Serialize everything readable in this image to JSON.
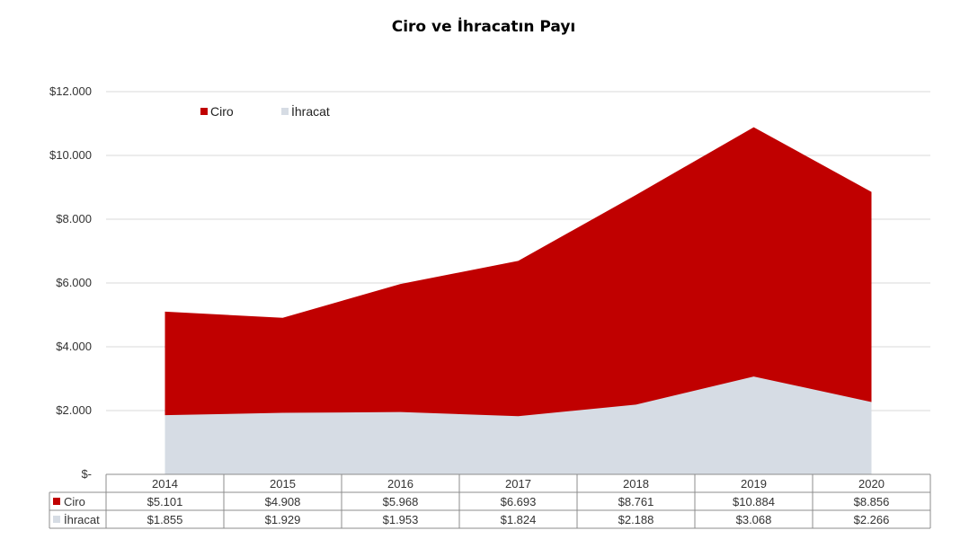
{
  "chart_data": {
    "type": "area",
    "title": "Ciro ve İhracatın Payı",
    "categories": [
      "2014",
      "2015",
      "2016",
      "2017",
      "2018",
      "2019",
      "2020"
    ],
    "series": [
      {
        "name": "Ciro",
        "color": "#c00000",
        "values": [
          5101,
          4908,
          5968,
          6693,
          8761,
          10884,
          8856
        ],
        "labels": [
          "$5.101",
          "$4.908",
          "$5.968",
          "$6.693",
          "$8.761",
          "$10.884",
          "$8.856"
        ]
      },
      {
        "name": "İhracat",
        "color": "#d6dce4",
        "values": [
          1855,
          1929,
          1953,
          1824,
          2188,
          3068,
          2266
        ],
        "labels": [
          "$1.855",
          "$1.929",
          "$1.953",
          "$1.824",
          "$2.188",
          "$3.068",
          "$2.266"
        ]
      }
    ],
    "ylim": [
      0,
      12000
    ],
    "yticks": [
      0,
      2000,
      4000,
      6000,
      8000,
      10000,
      12000
    ],
    "ytick_labels": [
      "$-",
      "$2.000",
      "$4.000",
      "$6.000",
      "$8.000",
      "$10.000",
      "$12.000"
    ],
    "grid": true,
    "legend": "top-left",
    "data_table": true
  }
}
